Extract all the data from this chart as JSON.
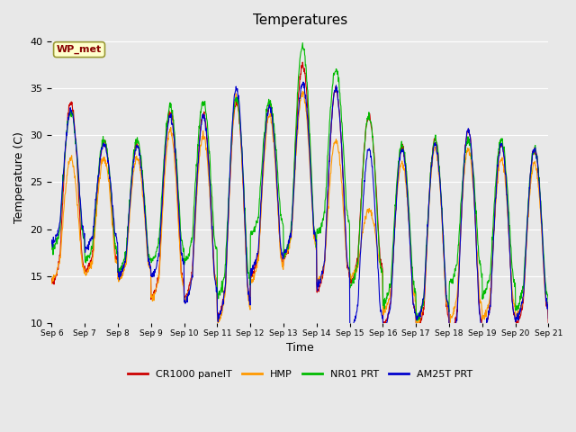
{
  "title": "Temperatures",
  "xlabel": "Time",
  "ylabel": "Temperature (C)",
  "ylim": [
    10,
    41
  ],
  "yticks": [
    10,
    15,
    20,
    25,
    30,
    35,
    40
  ],
  "legend_labels": [
    "CR1000 panelT",
    "HMP",
    "NR01 PRT",
    "AM25T PRT"
  ],
  "legend_colors": [
    "#cc0000",
    "#ff9900",
    "#00bb00",
    "#0000cc"
  ],
  "annotation_text": "WP_met",
  "annotation_color": "#880000",
  "annotation_bg": "#ffffcc",
  "plot_bg": "#e8e8e8",
  "x_tick_labels": [
    "Sep 6",
    "Sep 7",
    "Sep 8",
    "Sep 9",
    "Sep 10",
    "Sep 11",
    "Sep 12",
    "Sep 13",
    "Sep 14",
    "Sep 15",
    "Sep 16",
    "Sep 17",
    "Sep 18",
    "Sep 19",
    "Sep 20",
    "Sep 21"
  ],
  "n_days": 15,
  "pts_per_day": 96,
  "title_fontsize": 11,
  "axis_label_fontsize": 9,
  "daily_maxes_cr": [
    33.5,
    29.3,
    29.0,
    32.5,
    32.2,
    33.5,
    33.0,
    37.5,
    35.0,
    32.0,
    28.8,
    29.5,
    30.5,
    29.0,
    28.5
  ],
  "daily_mins_cr": [
    17.0,
    17.5,
    17.0,
    15.5,
    15.5,
    14.0,
    17.5,
    20.0,
    16.5,
    17.0,
    12.5,
    12.0,
    11.5,
    12.0,
    12.5
  ],
  "daily_maxes_hmp": [
    27.5,
    27.5,
    27.5,
    30.5,
    30.0,
    34.0,
    32.0,
    34.5,
    29.5,
    22.0,
    27.0,
    28.5,
    28.5,
    27.5,
    27.0
  ],
  "daily_mins_hmp": [
    16.5,
    17.0,
    16.5,
    15.2,
    15.0,
    13.5,
    17.0,
    19.5,
    16.5,
    16.0,
    13.5,
    12.5,
    13.0,
    13.0,
    13.0
  ],
  "daily_maxes_nr01": [
    32.5,
    29.5,
    29.5,
    33.0,
    33.5,
    34.0,
    33.5,
    39.5,
    37.0,
    32.0,
    29.0,
    29.5,
    29.5,
    29.5,
    28.5
  ],
  "daily_mins_nr01": [
    20.0,
    18.5,
    17.5,
    19.0,
    19.0,
    16.0,
    21.5,
    20.5,
    22.0,
    16.5,
    14.5,
    13.0,
    16.5,
    15.5,
    14.0
  ],
  "daily_maxes_am25": [
    32.5,
    29.0,
    28.8,
    32.0,
    32.0,
    35.0,
    33.0,
    35.5,
    35.0,
    28.5,
    28.5,
    29.0,
    30.5,
    29.0,
    28.5
  ],
  "daily_mins_am25": [
    20.5,
    19.5,
    17.0,
    17.5,
    15.0,
    14.0,
    18.0,
    20.0,
    17.0,
    12.0,
    12.2,
    13.0,
    11.0,
    12.0,
    13.0
  ]
}
